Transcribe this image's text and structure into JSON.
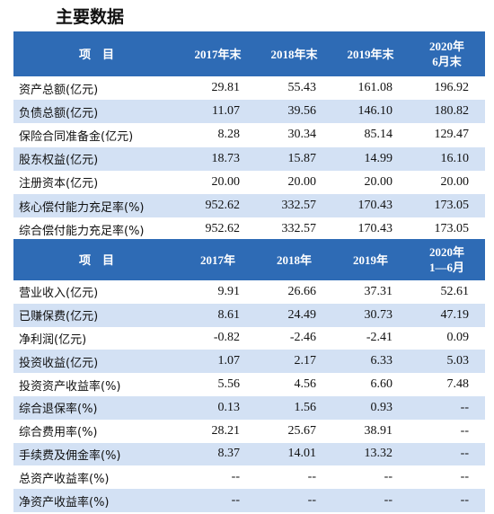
{
  "title": "主要数据",
  "sections": [
    {
      "header": [
        [
          "项　目"
        ],
        [
          "2017年末"
        ],
        [
          "2018年末"
        ],
        [
          "2019年末"
        ],
        [
          "2020年",
          "6月末"
        ]
      ],
      "rows": [
        [
          "资产总额(亿元)",
          "29.81",
          "55.43",
          "161.08",
          "196.92"
        ],
        [
          "负债总额(亿元)",
          "11.07",
          "39.56",
          "146.10",
          "180.82"
        ],
        [
          "保险合同准备金(亿元)",
          "8.28",
          "30.34",
          "85.14",
          "129.47"
        ],
        [
          "股东权益(亿元)",
          "18.73",
          "15.87",
          "14.99",
          "16.10"
        ],
        [
          "注册资本(亿元)",
          "20.00",
          "20.00",
          "20.00",
          "20.00"
        ],
        [
          "核心偿付能力充足率(%)",
          "952.62",
          "332.57",
          "170.43",
          "173.05"
        ],
        [
          "综合偿付能力充足率(%)",
          "952.62",
          "332.57",
          "170.43",
          "173.05"
        ]
      ]
    },
    {
      "header": [
        [
          "项　目"
        ],
        [
          "2017年"
        ],
        [
          "2018年"
        ],
        [
          "2019年"
        ],
        [
          "2020年",
          "1—6月"
        ]
      ],
      "rows": [
        [
          "营业收入(亿元)",
          "9.91",
          "26.66",
          "37.31",
          "52.61"
        ],
        [
          "已赚保费(亿元)",
          "8.61",
          "24.49",
          "30.73",
          "47.19"
        ],
        [
          "净利润(亿元)",
          "-0.82",
          "-2.46",
          "-2.41",
          "0.09"
        ],
        [
          "投资收益(亿元)",
          "1.07",
          "2.17",
          "6.33",
          "5.03"
        ],
        [
          "投资资产收益率(%)",
          "5.56",
          "4.56",
          "6.60",
          "7.48"
        ],
        [
          "综合退保率(%)",
          "0.13",
          "1.56",
          "0.93",
          "--"
        ],
        [
          "综合费用率(%)",
          "28.21",
          "25.67",
          "38.91",
          "--"
        ],
        [
          "手续费及佣金率(%)",
          "8.37",
          "14.01",
          "13.32",
          "--"
        ],
        [
          "总资产收益率(%)",
          "--",
          "--",
          "--",
          "--"
        ],
        [
          "净资产收益率(%)",
          "--",
          "--",
          "--",
          "--"
        ]
      ]
    }
  ]
}
